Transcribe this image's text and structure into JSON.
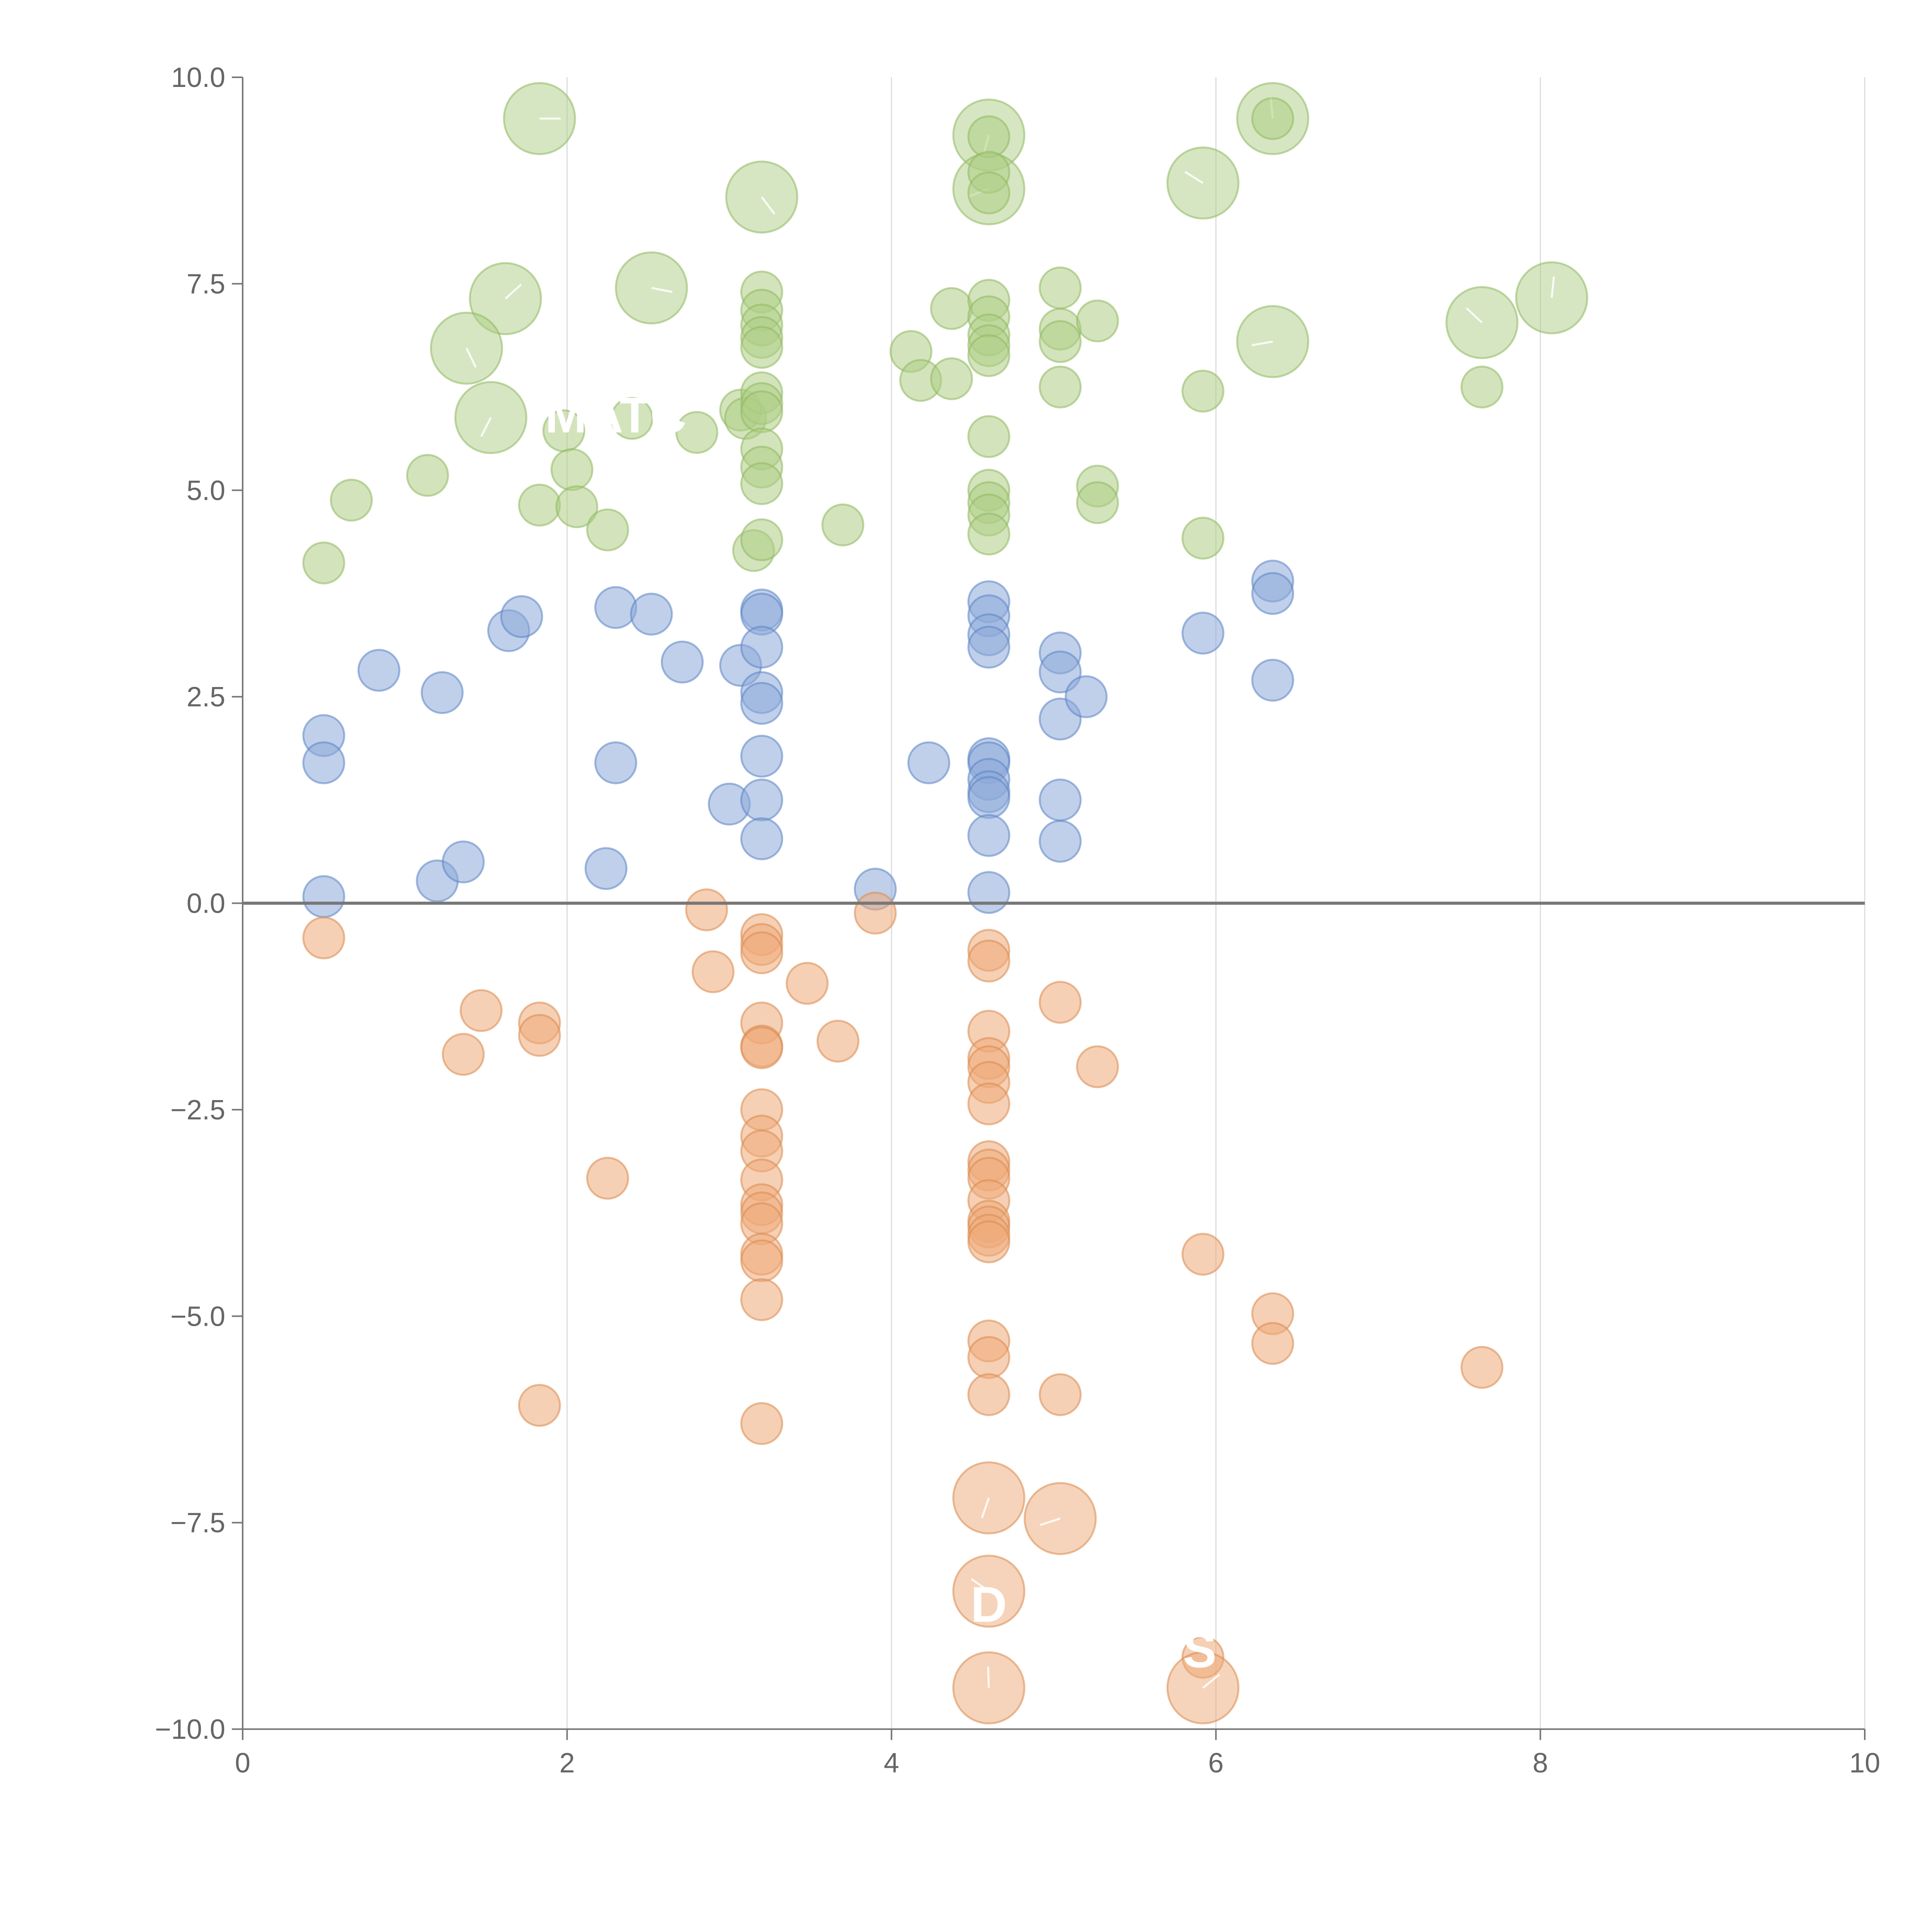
{
  "colors": {
    "green_fill": "#aecd85",
    "green_stroke": "#8fb860",
    "blue_fill": "#8caad9",
    "blue_stroke": "#5b84c4",
    "orange_fill": "#eeaa78",
    "orange_stroke": "#d98a4e",
    "axis": "#777777",
    "grid": "#dcdcdc",
    "tick_text": "#666666"
  },
  "labels": [
    {
      "text": "MATC",
      "x": 2.3,
      "y": 5.7
    },
    {
      "text": "S",
      "x": 5.9,
      "y": -9.25
    },
    {
      "text": "D",
      "x": 4.6,
      "y": -8.7
    }
  ],
  "chart_data": {
    "type": "scatter",
    "xlim": [
      0,
      10
    ],
    "ylim": [
      -10,
      10
    ],
    "xticks": [
      "0",
      "2",
      "4",
      "6",
      "8",
      "10"
    ],
    "yticks": [
      "10.0",
      "7.5",
      "5.0",
      "2.5",
      "0.0",
      "−2.5",
      "−5.0",
      "−7.5",
      "−10.0"
    ],
    "xtick_values": [
      0,
      2,
      4,
      6,
      8,
      10
    ],
    "ytick_values": [
      10,
      7.5,
      5,
      2.5,
      0,
      -2.5,
      -5,
      -7.5,
      -10
    ],
    "vertical_grid": true,
    "horizontal_grid": false,
    "zero_line": true,
    "series": [
      {
        "color_key": "green",
        "points": [
          {
            "x": 1.83,
            "y": 9.5,
            "r": 2
          },
          {
            "x": 3.2,
            "y": 8.55,
            "r": 2
          },
          {
            "x": 4.6,
            "y": 9.3,
            "r": 2
          },
          {
            "x": 4.6,
            "y": 8.65,
            "r": 2
          },
          {
            "x": 5.92,
            "y": 8.72,
            "r": 2
          },
          {
            "x": 6.35,
            "y": 9.5,
            "r": 2
          },
          {
            "x": 1.62,
            "y": 7.32,
            "r": 2
          },
          {
            "x": 2.52,
            "y": 7.45,
            "r": 2
          },
          {
            "x": 1.38,
            "y": 6.72,
            "r": 2
          },
          {
            "x": 1.53,
            "y": 5.88,
            "r": 2
          },
          {
            "x": 6.35,
            "y": 6.8,
            "r": 2
          },
          {
            "x": 7.64,
            "y": 7.03,
            "r": 2
          },
          {
            "x": 8.07,
            "y": 7.33,
            "r": 2
          },
          {
            "x": 6.35,
            "y": 9.5,
            "r": 1
          },
          {
            "x": 4.6,
            "y": 9.28,
            "r": 1
          },
          {
            "x": 4.6,
            "y": 8.85,
            "r": 1
          },
          {
            "x": 4.6,
            "y": 8.6,
            "r": 1
          },
          {
            "x": 0.5,
            "y": 4.12,
            "r": 1
          },
          {
            "x": 0.67,
            "y": 4.88,
            "r": 1
          },
          {
            "x": 1.14,
            "y": 5.18,
            "r": 1
          },
          {
            "x": 1.83,
            "y": 4.82,
            "r": 1
          },
          {
            "x": 1.98,
            "y": 5.72,
            "r": 1
          },
          {
            "x": 2.03,
            "y": 5.25,
            "r": 1
          },
          {
            "x": 2.06,
            "y": 4.8,
            "r": 1
          },
          {
            "x": 2.25,
            "y": 4.52,
            "r": 1
          },
          {
            "x": 2.4,
            "y": 5.87,
            "r": 1
          },
          {
            "x": 2.8,
            "y": 5.7,
            "r": 1
          },
          {
            "x": 3.07,
            "y": 5.97,
            "r": 1
          },
          {
            "x": 3.1,
            "y": 5.87,
            "r": 1
          },
          {
            "x": 3.15,
            "y": 4.27,
            "r": 1
          },
          {
            "x": 3.2,
            "y": 7.4,
            "r": 1
          },
          {
            "x": 3.2,
            "y": 7.18,
            "r": 1
          },
          {
            "x": 3.2,
            "y": 7.0,
            "r": 1
          },
          {
            "x": 3.2,
            "y": 6.85,
            "r": 1
          },
          {
            "x": 3.2,
            "y": 6.73,
            "r": 1
          },
          {
            "x": 3.2,
            "y": 6.18,
            "r": 1
          },
          {
            "x": 3.2,
            "y": 6.05,
            "r": 1
          },
          {
            "x": 3.2,
            "y": 5.95,
            "r": 1
          },
          {
            "x": 3.2,
            "y": 5.5,
            "r": 1
          },
          {
            "x": 3.2,
            "y": 5.28,
            "r": 1
          },
          {
            "x": 3.2,
            "y": 5.08,
            "r": 1
          },
          {
            "x": 3.2,
            "y": 4.4,
            "r": 1
          },
          {
            "x": 3.7,
            "y": 4.58,
            "r": 1
          },
          {
            "x": 4.12,
            "y": 6.68,
            "r": 1
          },
          {
            "x": 4.18,
            "y": 6.33,
            "r": 1
          },
          {
            "x": 4.37,
            "y": 7.2,
            "r": 1
          },
          {
            "x": 4.37,
            "y": 6.35,
            "r": 1
          },
          {
            "x": 4.6,
            "y": 7.3,
            "r": 1
          },
          {
            "x": 4.6,
            "y": 7.1,
            "r": 1
          },
          {
            "x": 4.6,
            "y": 6.88,
            "r": 1
          },
          {
            "x": 4.6,
            "y": 6.75,
            "r": 1
          },
          {
            "x": 4.6,
            "y": 6.63,
            "r": 1
          },
          {
            "x": 4.6,
            "y": 5.65,
            "r": 1
          },
          {
            "x": 4.6,
            "y": 5.0,
            "r": 1
          },
          {
            "x": 4.6,
            "y": 4.85,
            "r": 1
          },
          {
            "x": 4.6,
            "y": 4.7,
            "r": 1
          },
          {
            "x": 4.6,
            "y": 4.47,
            "r": 1
          },
          {
            "x": 5.04,
            "y": 7.45,
            "r": 1
          },
          {
            "x": 5.04,
            "y": 6.95,
            "r": 1
          },
          {
            "x": 5.04,
            "y": 6.8,
            "r": 1
          },
          {
            "x": 5.04,
            "y": 6.25,
            "r": 1
          },
          {
            "x": 5.27,
            "y": 7.05,
            "r": 1
          },
          {
            "x": 5.27,
            "y": 5.05,
            "r": 1
          },
          {
            "x": 5.27,
            "y": 4.85,
            "r": 1
          },
          {
            "x": 5.92,
            "y": 6.2,
            "r": 1
          },
          {
            "x": 5.92,
            "y": 4.42,
            "r": 1
          },
          {
            "x": 7.64,
            "y": 6.25,
            "r": 1
          }
        ]
      },
      {
        "color_key": "blue",
        "points": [
          {
            "x": 0.5,
            "y": 2.03,
            "r": 1
          },
          {
            "x": 0.5,
            "y": 1.7,
            "r": 1
          },
          {
            "x": 0.5,
            "y": 0.08,
            "r": 1
          },
          {
            "x": 0.84,
            "y": 2.82,
            "r": 1
          },
          {
            "x": 1.2,
            "y": 0.27,
            "r": 1
          },
          {
            "x": 1.23,
            "y": 2.55,
            "r": 1
          },
          {
            "x": 1.36,
            "y": 0.5,
            "r": 1
          },
          {
            "x": 1.64,
            "y": 3.3,
            "r": 1
          },
          {
            "x": 1.72,
            "y": 3.47,
            "r": 1
          },
          {
            "x": 2.24,
            "y": 0.42,
            "r": 1
          },
          {
            "x": 2.3,
            "y": 3.58,
            "r": 1
          },
          {
            "x": 2.3,
            "y": 1.7,
            "r": 1
          },
          {
            "x": 2.52,
            "y": 3.5,
            "r": 1
          },
          {
            "x": 2.71,
            "y": 2.92,
            "r": 1
          },
          {
            "x": 3.0,
            "y": 1.2,
            "r": 1
          },
          {
            "x": 3.07,
            "y": 2.88,
            "r": 1
          },
          {
            "x": 3.2,
            "y": 3.55,
            "r": 1
          },
          {
            "x": 3.2,
            "y": 3.5,
            "r": 1
          },
          {
            "x": 3.2,
            "y": 3.1,
            "r": 1
          },
          {
            "x": 3.2,
            "y": 2.55,
            "r": 1
          },
          {
            "x": 3.2,
            "y": 2.42,
            "r": 1
          },
          {
            "x": 3.2,
            "y": 1.78,
            "r": 1
          },
          {
            "x": 3.2,
            "y": 1.25,
            "r": 1
          },
          {
            "x": 3.2,
            "y": 0.78,
            "r": 1
          },
          {
            "x": 3.9,
            "y": 0.17,
            "r": 1
          },
          {
            "x": 4.23,
            "y": 1.7,
            "r": 1
          },
          {
            "x": 4.6,
            "y": 3.65,
            "r": 1
          },
          {
            "x": 4.6,
            "y": 3.48,
            "r": 1
          },
          {
            "x": 4.6,
            "y": 3.25,
            "r": 1
          },
          {
            "x": 4.6,
            "y": 3.1,
            "r": 1
          },
          {
            "x": 4.6,
            "y": 1.75,
            "r": 1
          },
          {
            "x": 4.6,
            "y": 1.7,
            "r": 1
          },
          {
            "x": 4.6,
            "y": 1.5,
            "r": 1
          },
          {
            "x": 4.6,
            "y": 1.35,
            "r": 1
          },
          {
            "x": 4.6,
            "y": 1.28,
            "r": 1
          },
          {
            "x": 4.6,
            "y": 0.82,
            "r": 1
          },
          {
            "x": 4.6,
            "y": 0.13,
            "r": 1
          },
          {
            "x": 5.04,
            "y": 3.03,
            "r": 1
          },
          {
            "x": 5.04,
            "y": 2.8,
            "r": 1
          },
          {
            "x": 5.04,
            "y": 2.23,
            "r": 1
          },
          {
            "x": 5.04,
            "y": 1.25,
            "r": 1
          },
          {
            "x": 5.04,
            "y": 0.75,
            "r": 1
          },
          {
            "x": 5.2,
            "y": 2.5,
            "r": 1
          },
          {
            "x": 5.92,
            "y": 3.27,
            "r": 1
          },
          {
            "x": 6.35,
            "y": 3.9,
            "r": 1
          },
          {
            "x": 6.35,
            "y": 3.75,
            "r": 1
          },
          {
            "x": 6.35,
            "y": 2.7,
            "r": 1
          }
        ]
      },
      {
        "color_key": "orange",
        "points": [
          {
            "x": 0.5,
            "y": -0.42,
            "r": 1
          },
          {
            "x": 1.36,
            "y": -1.83,
            "r": 1
          },
          {
            "x": 1.47,
            "y": -1.3,
            "r": 1
          },
          {
            "x": 1.83,
            "y": -1.45,
            "r": 1
          },
          {
            "x": 1.83,
            "y": -1.6,
            "r": 1
          },
          {
            "x": 1.83,
            "y": -6.08,
            "r": 1
          },
          {
            "x": 2.25,
            "y": -3.33,
            "r": 1
          },
          {
            "x": 2.86,
            "y": -0.08,
            "r": 1
          },
          {
            "x": 2.9,
            "y": -0.83,
            "r": 1
          },
          {
            "x": 3.2,
            "y": -0.38,
            "r": 1
          },
          {
            "x": 3.2,
            "y": -0.5,
            "r": 1
          },
          {
            "x": 3.2,
            "y": -0.6,
            "r": 1
          },
          {
            "x": 3.2,
            "y": -1.45,
            "r": 1
          },
          {
            "x": 3.2,
            "y": -1.73,
            "r": 1
          },
          {
            "x": 3.2,
            "y": -1.75,
            "r": 1
          },
          {
            "x": 3.2,
            "y": -2.5,
            "r": 1
          },
          {
            "x": 3.2,
            "y": -2.82,
            "r": 1
          },
          {
            "x": 3.2,
            "y": -3.0,
            "r": 1
          },
          {
            "x": 3.2,
            "y": -3.35,
            "r": 1
          },
          {
            "x": 3.2,
            "y": -3.65,
            "r": 1
          },
          {
            "x": 3.2,
            "y": -3.75,
            "r": 1
          },
          {
            "x": 3.2,
            "y": -3.88,
            "r": 1
          },
          {
            "x": 3.2,
            "y": -4.25,
            "r": 1
          },
          {
            "x": 3.2,
            "y": -4.33,
            "r": 1
          },
          {
            "x": 3.2,
            "y": -4.8,
            "r": 1
          },
          {
            "x": 3.2,
            "y": -6.3,
            "r": 1
          },
          {
            "x": 3.48,
            "y": -0.97,
            "r": 1
          },
          {
            "x": 3.67,
            "y": -1.67,
            "r": 1
          },
          {
            "x": 3.9,
            "y": -0.12,
            "r": 1
          },
          {
            "x": 4.6,
            "y": -0.57,
            "r": 1
          },
          {
            "x": 4.6,
            "y": -0.7,
            "r": 1
          },
          {
            "x": 4.6,
            "y": -1.55,
            "r": 1
          },
          {
            "x": 4.6,
            "y": -1.88,
            "r": 1
          },
          {
            "x": 4.6,
            "y": -1.98,
            "r": 1
          },
          {
            "x": 4.6,
            "y": -2.17,
            "r": 1
          },
          {
            "x": 4.6,
            "y": -2.43,
            "r": 1
          },
          {
            "x": 4.6,
            "y": -3.13,
            "r": 1
          },
          {
            "x": 4.6,
            "y": -3.23,
            "r": 1
          },
          {
            "x": 4.6,
            "y": -3.33,
            "r": 1
          },
          {
            "x": 4.6,
            "y": -3.6,
            "r": 1
          },
          {
            "x": 4.6,
            "y": -3.85,
            "r": 1
          },
          {
            "x": 4.6,
            "y": -3.92,
            "r": 1
          },
          {
            "x": 4.6,
            "y": -4.02,
            "r": 1
          },
          {
            "x": 4.6,
            "y": -4.1,
            "r": 1
          },
          {
            "x": 4.6,
            "y": -5.3,
            "r": 1
          },
          {
            "x": 4.6,
            "y": -5.5,
            "r": 1
          },
          {
            "x": 4.6,
            "y": -5.95,
            "r": 1
          },
          {
            "x": 5.04,
            "y": -1.2,
            "r": 1
          },
          {
            "x": 5.04,
            "y": -5.95,
            "r": 1
          },
          {
            "x": 5.27,
            "y": -1.98,
            "r": 1
          },
          {
            "x": 5.92,
            "y": -4.25,
            "r": 1
          },
          {
            "x": 5.92,
            "y": -9.13,
            "r": 1
          },
          {
            "x": 6.35,
            "y": -4.97,
            "r": 1
          },
          {
            "x": 6.35,
            "y": -5.33,
            "r": 1
          },
          {
            "x": 7.64,
            "y": -5.62,
            "r": 1
          },
          {
            "x": 4.6,
            "y": -7.2,
            "r": 2
          },
          {
            "x": 5.04,
            "y": -7.45,
            "r": 2
          },
          {
            "x": 4.6,
            "y": -8.33,
            "r": 2
          },
          {
            "x": 4.6,
            "y": -9.5,
            "r": 2
          },
          {
            "x": 5.92,
            "y": -9.5,
            "r": 2
          }
        ]
      }
    ]
  }
}
